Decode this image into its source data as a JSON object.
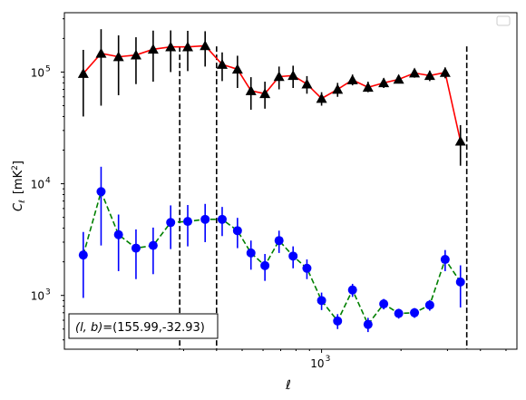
{
  "chart_data": {
    "type": "scatter",
    "title": "",
    "xlabel": "ℓ",
    "ylabel_main": "C",
    "ylabel_sub": "ℓ",
    "ylabel_unit": "[mK",
    "ylabel_unit_sup": "2",
    "ylabel_unit_end": "]",
    "xscale": "log",
    "yscale": "log",
    "xlim": [
      106,
      5500
    ],
    "ylim": [
      330,
      340000
    ],
    "x_ticks": [
      {
        "value": 1000,
        "base": "10",
        "exp": "3"
      }
    ],
    "y_ticks": [
      {
        "value": 1000,
        "base": "10",
        "exp": "3"
      },
      {
        "value": 10000,
        "base": "10",
        "exp": "4"
      },
      {
        "value": 100000,
        "base": "10",
        "exp": "5"
      }
    ],
    "legend": {
      "placement": "top-right",
      "entries": []
    },
    "annotation": {
      "text": "(l, b)=(155.99,-32.93)",
      "label_prefix_italic": "(l, b)=",
      "label_value": "(155.99,-32.93)"
    },
    "vlines": [
      290,
      400,
      3550
    ],
    "series": [
      {
        "marker": "triangle",
        "line_color": "#ff0000",
        "marker_color": "#000000",
        "linestyle": "solid",
        "points": [
          {
            "x": 125,
            "y": 97000,
            "lo": 40000,
            "hi": 158000
          },
          {
            "x": 146,
            "y": 147000,
            "lo": 50000,
            "hi": 242000
          },
          {
            "x": 170,
            "y": 137000,
            "lo": 62000,
            "hi": 213000
          },
          {
            "x": 198,
            "y": 142000,
            "lo": 78000,
            "hi": 205000
          },
          {
            "x": 230,
            "y": 160000,
            "lo": 82000,
            "hi": 235000
          },
          {
            "x": 268,
            "y": 168000,
            "lo": 100000,
            "hi": 236000
          },
          {
            "x": 311,
            "y": 168000,
            "lo": 102000,
            "hi": 234000
          },
          {
            "x": 362,
            "y": 172000,
            "lo": 112000,
            "hi": 232000
          },
          {
            "x": 420,
            "y": 117000,
            "lo": 83000,
            "hi": 150000
          },
          {
            "x": 480,
            "y": 106000,
            "lo": 72000,
            "hi": 140000
          },
          {
            "x": 540,
            "y": 68000,
            "lo": 46000,
            "hi": 90000
          },
          {
            "x": 610,
            "y": 64000,
            "lo": 47000,
            "hi": 82000
          },
          {
            "x": 690,
            "y": 91000,
            "lo": 70000,
            "hi": 112000
          },
          {
            "x": 780,
            "y": 93000,
            "lo": 72000,
            "hi": 114000
          },
          {
            "x": 880,
            "y": 78000,
            "lo": 64000,
            "hi": 92000
          },
          {
            "x": 1000,
            "y": 58000,
            "lo": 50000,
            "hi": 66000
          },
          {
            "x": 1150,
            "y": 70000,
            "lo": 60000,
            "hi": 80000
          },
          {
            "x": 1310,
            "y": 85000,
            "lo": 76000,
            "hi": 95000
          },
          {
            "x": 1500,
            "y": 73000,
            "lo": 66000,
            "hi": 82000
          },
          {
            "x": 1720,
            "y": 80000,
            "lo": 72000,
            "hi": 88000
          },
          {
            "x": 1960,
            "y": 86000,
            "lo": 79000,
            "hi": 94000
          },
          {
            "x": 2250,
            "y": 98000,
            "lo": 89000,
            "hi": 107000
          },
          {
            "x": 2570,
            "y": 93000,
            "lo": 83000,
            "hi": 103000
          },
          {
            "x": 2940,
            "y": 99000,
            "lo": 88000,
            "hi": 110000
          },
          {
            "x": 3360,
            "y": 24000,
            "lo": 14500,
            "hi": 33500
          }
        ]
      },
      {
        "marker": "circle",
        "line_color": "#008000",
        "marker_color": "#0000ff",
        "linestyle": "dashed",
        "points": [
          {
            "x": 125,
            "y": 2300,
            "lo": 950,
            "hi": 3700
          },
          {
            "x": 146,
            "y": 8500,
            "lo": 2800,
            "hi": 14200
          },
          {
            "x": 170,
            "y": 3500,
            "lo": 1650,
            "hi": 5300
          },
          {
            "x": 198,
            "y": 2650,
            "lo": 1400,
            "hi": 3900
          },
          {
            "x": 230,
            "y": 2800,
            "lo": 1550,
            "hi": 4050
          },
          {
            "x": 268,
            "y": 4500,
            "lo": 2600,
            "hi": 6400
          },
          {
            "x": 311,
            "y": 4600,
            "lo": 2750,
            "hi": 6450
          },
          {
            "x": 362,
            "y": 4800,
            "lo": 3000,
            "hi": 6600
          },
          {
            "x": 420,
            "y": 4800,
            "lo": 3400,
            "hi": 6200
          },
          {
            "x": 480,
            "y": 3800,
            "lo": 2650,
            "hi": 4950
          },
          {
            "x": 540,
            "y": 2400,
            "lo": 1700,
            "hi": 3100
          },
          {
            "x": 610,
            "y": 1850,
            "lo": 1350,
            "hi": 2350
          },
          {
            "x": 690,
            "y": 3100,
            "lo": 2400,
            "hi": 3800
          },
          {
            "x": 780,
            "y": 2250,
            "lo": 1750,
            "hi": 2750
          },
          {
            "x": 880,
            "y": 1750,
            "lo": 1400,
            "hi": 2100
          },
          {
            "x": 1000,
            "y": 900,
            "lo": 740,
            "hi": 1060
          },
          {
            "x": 1150,
            "y": 590,
            "lo": 500,
            "hi": 680
          },
          {
            "x": 1310,
            "y": 1120,
            "lo": 970,
            "hi": 1270
          },
          {
            "x": 1500,
            "y": 550,
            "lo": 470,
            "hi": 630
          },
          {
            "x": 1720,
            "y": 840,
            "lo": 750,
            "hi": 930
          },
          {
            "x": 1960,
            "y": 690,
            "lo": 620,
            "hi": 760
          },
          {
            "x": 2250,
            "y": 700,
            "lo": 630,
            "hi": 770
          },
          {
            "x": 2570,
            "y": 820,
            "lo": 730,
            "hi": 910
          },
          {
            "x": 2940,
            "y": 2100,
            "lo": 1650,
            "hi": 2550
          },
          {
            "x": 3360,
            "y": 1320,
            "lo": 780,
            "hi": 1860
          }
        ]
      }
    ]
  }
}
